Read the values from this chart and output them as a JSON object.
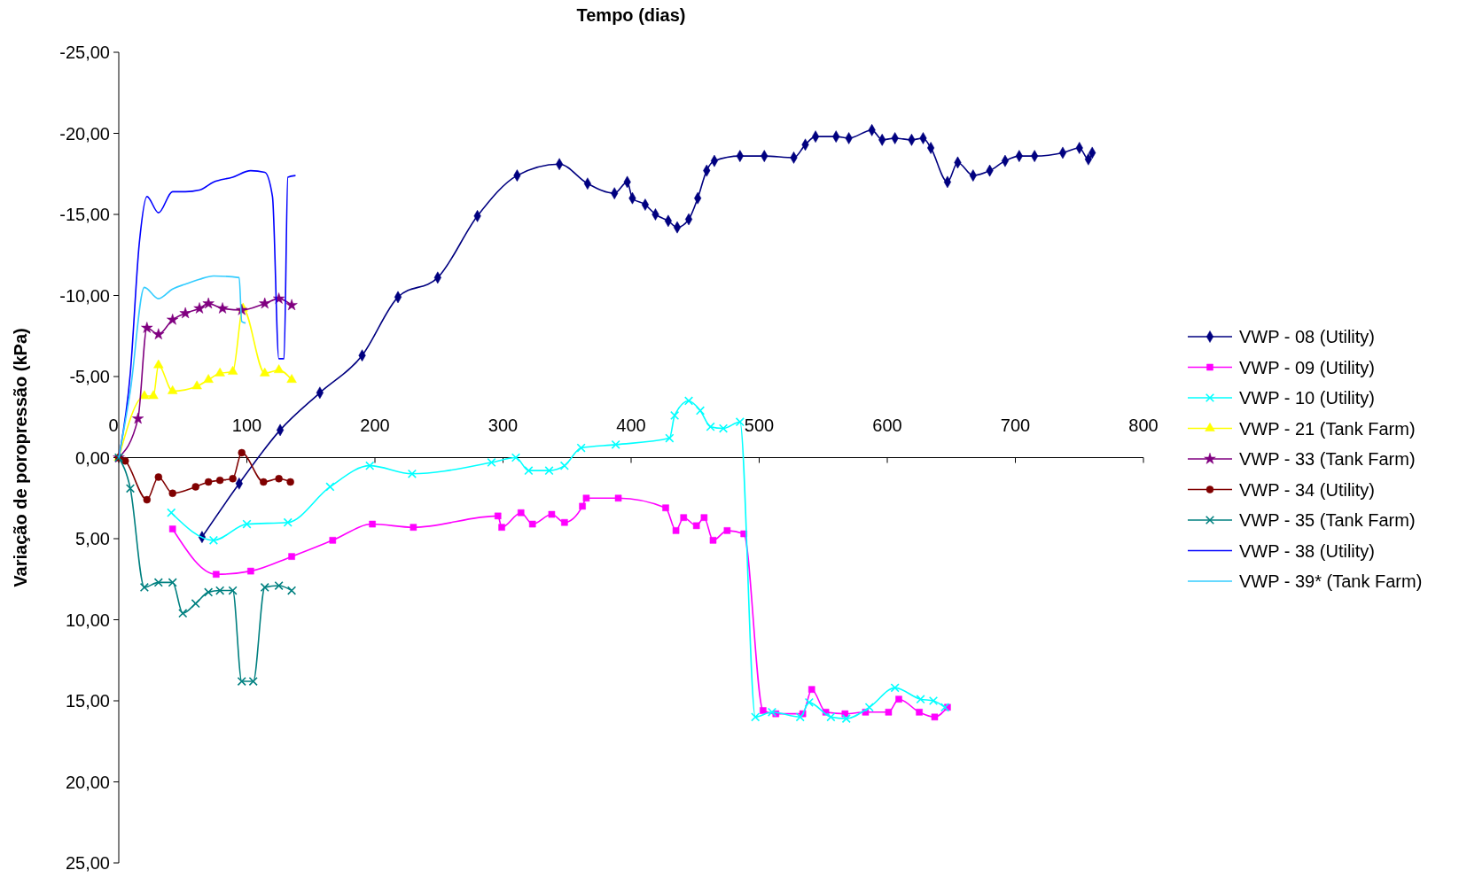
{
  "chart_data": {
    "type": "line",
    "xlabel": "Tempo (dias)",
    "ylabel": "Variação de poropressão (kPa)",
    "xlim": [
      0,
      800
    ],
    "xticks": [
      0,
      100,
      200,
      300,
      400,
      500,
      600,
      700,
      800
    ],
    "ylim": [
      25,
      -25
    ],
    "yticks": [
      {
        "value": -25,
        "label": "-25,00"
      },
      {
        "value": -20,
        "label": "-20,00"
      },
      {
        "value": -15,
        "label": "-15,00"
      },
      {
        "value": -10,
        "label": "-10,00"
      },
      {
        "value": -5,
        "label": "-5,00"
      },
      {
        "value": 0,
        "label": "0,00"
      },
      {
        "value": 5,
        "label": "5,00"
      },
      {
        "value": 10,
        "label": "10,00"
      },
      {
        "value": 15,
        "label": "15,00"
      },
      {
        "value": 20,
        "label": "20,00"
      },
      {
        "value": 25,
        "label": "25,00"
      }
    ],
    "grid": false,
    "legend": "right",
    "series": [
      {
        "name": "VWP - 08 (Utility)",
        "color": "#000080",
        "marker": "diamond",
        "x": [
          65,
          94,
          126,
          157,
          190,
          218,
          249,
          280,
          311,
          344,
          366,
          387,
          397,
          401,
          411,
          419,
          429,
          436,
          445,
          452,
          459,
          465,
          485,
          504,
          527,
          536,
          544,
          560,
          570,
          588,
          596,
          606,
          619,
          628,
          634,
          647,
          655,
          667,
          680,
          692,
          703,
          715,
          737,
          750,
          757,
          760
        ],
        "values": [
          4.9,
          1.6,
          -1.7,
          -4.0,
          -6.3,
          -9.9,
          -11.1,
          -14.9,
          -17.4,
          -18.1,
          -16.9,
          -16.3,
          -17.0,
          -16.0,
          -15.6,
          -15.0,
          -14.6,
          -14.2,
          -14.7,
          -16.0,
          -17.7,
          -18.3,
          -18.6,
          -18.6,
          -18.5,
          -19.3,
          -19.8,
          -19.8,
          -19.7,
          -20.2,
          -19.6,
          -19.7,
          -19.6,
          -19.7,
          -19.1,
          -17.0,
          -18.2,
          -17.4,
          -17.7,
          -18.3,
          -18.6,
          -18.6,
          -18.8,
          -19.1,
          -18.4,
          -18.8
        ]
      },
      {
        "name": "VWP - 09 (Utility)",
        "color": "#ff00ff",
        "marker": "square",
        "x": [
          42,
          76,
          103,
          135,
          167,
          198,
          230,
          296,
          299,
          314,
          323,
          338,
          348,
          362,
          365,
          390,
          427,
          435,
          441,
          451,
          457,
          464,
          475,
          488,
          503,
          513,
          534,
          541,
          552,
          567,
          583,
          601,
          609,
          625,
          637,
          647
        ],
        "values": [
          4.4,
          7.2,
          7.0,
          6.1,
          5.1,
          4.1,
          4.3,
          3.6,
          4.3,
          3.4,
          4.1,
          3.5,
          4.0,
          3.0,
          2.5,
          2.5,
          3.1,
          4.5,
          3.7,
          4.2,
          3.7,
          5.1,
          4.5,
          4.7,
          15.6,
          15.8,
          15.8,
          14.3,
          15.7,
          15.8,
          15.7,
          15.7,
          14.9,
          15.7,
          16.0,
          15.4
        ]
      },
      {
        "name": "VWP - 10 (Utility)",
        "color": "#00ffff",
        "marker": "cross",
        "x": [
          41,
          74,
          100,
          132,
          165,
          196,
          229,
          291,
          310,
          320,
          336,
          348,
          361,
          388,
          430,
          434,
          445,
          454,
          462,
          472,
          485,
          497,
          510,
          532,
          539,
          556,
          568,
          586,
          606,
          626,
          636,
          645
        ],
        "values": [
          3.4,
          5.1,
          4.1,
          4.0,
          1.8,
          0.5,
          1.0,
          0.3,
          0.0,
          0.8,
          0.8,
          0.5,
          -0.6,
          -0.8,
          -1.2,
          -2.6,
          -3.5,
          -2.9,
          -1.9,
          -1.8,
          -2.2,
          16.0,
          15.7,
          16.0,
          15.1,
          16.0,
          16.1,
          15.4,
          14.2,
          14.9,
          15.0,
          15.4
        ]
      },
      {
        "name": "VWP - 21 (Tank Farm)",
        "color": "#ffff00",
        "marker": "triangle",
        "x": [
          0,
          20,
          27,
          31,
          42,
          61,
          70,
          79,
          89,
          97,
          114,
          125,
          135
        ],
        "values": [
          0,
          -3.8,
          -3.8,
          -5.7,
          -4.1,
          -4.4,
          -4.8,
          -5.2,
          -5.3,
          -9.2,
          -5.2,
          -5.4,
          -4.8
        ]
      },
      {
        "name": "VWP - 33 (Tank Farm)",
        "color": "#800080",
        "marker": "star",
        "x": [
          0,
          15,
          22,
          31,
          42,
          52,
          63,
          70,
          81,
          96,
          114,
          125,
          135
        ],
        "values": [
          0,
          -2.4,
          -8.0,
          -7.6,
          -8.5,
          -8.9,
          -9.2,
          -9.5,
          -9.2,
          -9.1,
          -9.5,
          -9.8,
          -9.4
        ]
      },
      {
        "name": "VWP - 34 (Utility)",
        "color": "#800000",
        "marker": "circle",
        "x": [
          0,
          5,
          22,
          31,
          42,
          60,
          70,
          79,
          89,
          96,
          113,
          125,
          134
        ],
        "values": [
          0,
          0.2,
          2.6,
          1.2,
          2.2,
          1.8,
          1.5,
          1.4,
          1.3,
          -0.3,
          1.5,
          1.3,
          1.5
        ]
      },
      {
        "name": "VWP - 35 (Tank Farm)",
        "color": "#008080",
        "marker": "cross",
        "x": [
          0,
          9,
          20,
          31,
          42,
          50,
          60,
          70,
          79,
          89,
          96,
          105,
          114,
          125,
          135
        ],
        "values": [
          0,
          1.9,
          8.0,
          7.7,
          7.7,
          9.6,
          9.0,
          8.3,
          8.2,
          8.2,
          13.8,
          13.8,
          8.0,
          7.9,
          8.2
        ]
      },
      {
        "name": "VWP - 38 (Utility)",
        "color": "#0000ff",
        "marker": "none",
        "x": [
          0,
          9,
          16,
          22,
          31,
          42,
          52,
          63,
          74,
          89,
          103,
          114,
          120,
          125,
          129,
          132,
          138
        ],
        "values": [
          0,
          -5.2,
          -13.2,
          -16.1,
          -15.1,
          -16.4,
          -16.4,
          -16.5,
          -17.0,
          -17.3,
          -17.7,
          -17.6,
          -16.1,
          -6.1,
          -6.1,
          -17.3,
          -17.4
        ]
      },
      {
        "name": "VWP - 39* (Tank Farm)",
        "color": "#33ccff",
        "marker": "none",
        "x": [
          0,
          9,
          20,
          31,
          42,
          52,
          63,
          74,
          94,
          96,
          99
        ],
        "values": [
          0,
          -4.1,
          -10.5,
          -9.8,
          -10.4,
          -10.7,
          -11.0,
          -11.2,
          -11.1,
          -8.4,
          -8.3
        ]
      }
    ]
  }
}
